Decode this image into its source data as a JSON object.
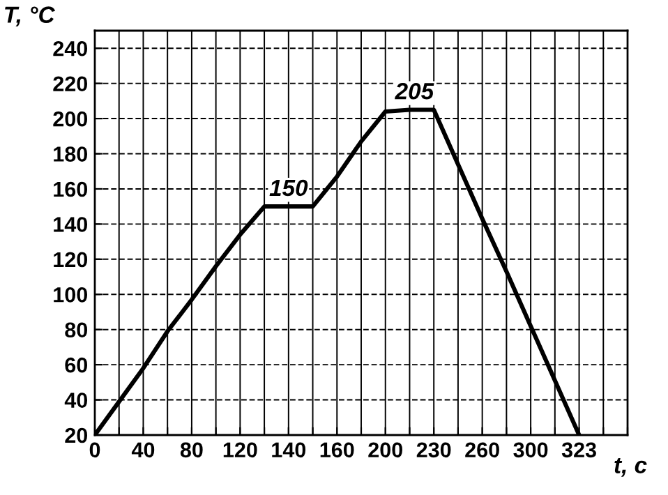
{
  "chart_data": {
    "type": "line",
    "xlabel": "t, c",
    "ylabel": "T, °C",
    "categories": [
      "0",
      null,
      "40",
      null,
      "80",
      null,
      "120",
      null,
      "140",
      null,
      "160",
      null,
      "200",
      null,
      "230",
      null,
      "260",
      null,
      "300",
      null,
      "323",
      null,
      null
    ],
    "series": [
      {
        "color": "#000000",
        "values": [
          20,
          39,
          58,
          79,
          97,
          116,
          134,
          150,
          150,
          150,
          167,
          187,
          204,
          205,
          205,
          174,
          143,
          113,
          82,
          51,
          20,
          null,
          null
        ]
      }
    ],
    "ylim": [
      20,
      250
    ],
    "yticks": [
      20,
      40,
      60,
      80,
      100,
      120,
      140,
      160,
      180,
      200,
      220,
      240
    ],
    "grid": true,
    "marker": "none",
    "line_style": "solid",
    "annotations": [
      {
        "text": "150",
        "x": "140",
        "y": 150
      },
      {
        "text": "205",
        "x": "230",
        "y": 205
      }
    ]
  }
}
